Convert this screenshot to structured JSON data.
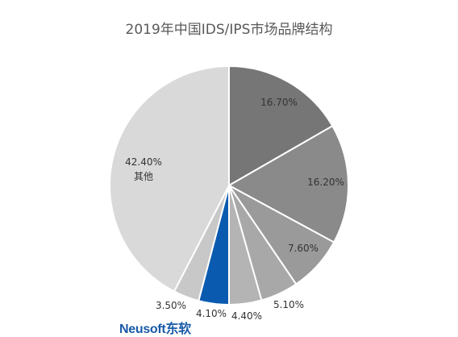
{
  "chart_data": {
    "type": "pie",
    "title": "2019年中国IDS/IPS市场品牌结构",
    "slices": [
      {
        "label": "",
        "value": 16.7,
        "value_label": "16.70%",
        "color": "#767676"
      },
      {
        "label": "",
        "value": 16.2,
        "value_label": "16.20%",
        "color": "#8a8a8a"
      },
      {
        "label": "",
        "value": 7.6,
        "value_label": "7.60%",
        "color": "#9a9a9a"
      },
      {
        "label": "",
        "value": 5.1,
        "value_label": "5.10%",
        "color": "#a8a8a8"
      },
      {
        "label": "",
        "value": 4.4,
        "value_label": "4.40%",
        "color": "#b4b4b4"
      },
      {
        "label": "Neusoft东软",
        "value": 4.1,
        "value_label": "4.10%",
        "color": "#0a5bb0"
      },
      {
        "label": "",
        "value": 3.5,
        "value_label": "3.50%",
        "color": "#c8c8c8"
      },
      {
        "label": "其他",
        "value": 42.4,
        "value_label": "42.40%",
        "color": "#d9d9d9"
      }
    ],
    "start_angle": "12 o'clock",
    "direction": "clockwise",
    "legend": "none"
  },
  "logo_text": "Neusoft东软"
}
